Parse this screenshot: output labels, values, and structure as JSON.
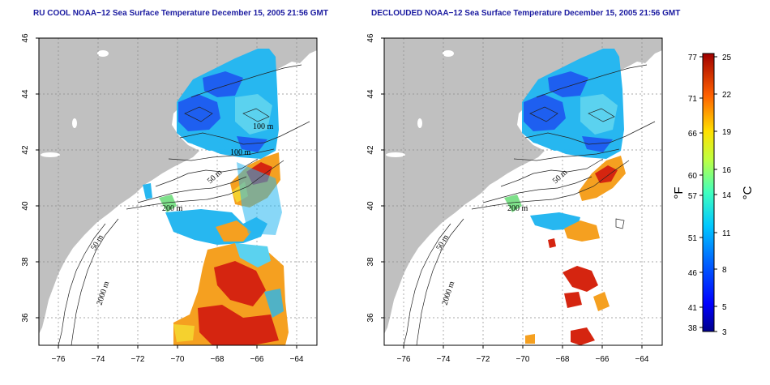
{
  "panels": [
    {
      "title": "RU COOL NOAA−12 Sea Surface Temperature December 15, 2005 21:56 GMT",
      "contour_labels": [
        "100 m",
        "100 m",
        "50 m",
        "200 m",
        "50 m",
        "2000 m"
      ]
    },
    {
      "title": "DECLOUDED NOAA−12 Sea Surface Temperature December 15, 2005 21:56 GMT",
      "contour_labels": [
        "50 m",
        "200 m",
        "50 m",
        "2000 m"
      ]
    }
  ],
  "axes": {
    "x_ticks": [
      "−76",
      "−74",
      "−72",
      "−70",
      "−68",
      "−66",
      "−64"
    ],
    "y_ticks": [
      "46",
      "44",
      "42",
      "40",
      "38",
      "36"
    ]
  },
  "colorbar": {
    "fahrenheit_ticks": [
      "77",
      "71",
      "66",
      "60",
      "57",
      "51",
      "46",
      "41",
      "38"
    ],
    "celsius_ticks": [
      "25",
      "22",
      "19",
      "16",
      "14",
      "11",
      "8",
      "5",
      "3"
    ],
    "fahrenheit_unit": "°F",
    "celsius_unit": "°C",
    "range_c": [
      3,
      25
    ]
  },
  "colors": {
    "land": "#c0c0c0",
    "water": "#ffffff",
    "title": "#1a1aa0",
    "cold": "#1e5ff0",
    "cool": "#27b7f0",
    "warm": "#f5a020",
    "hot": "#d52510"
  }
}
